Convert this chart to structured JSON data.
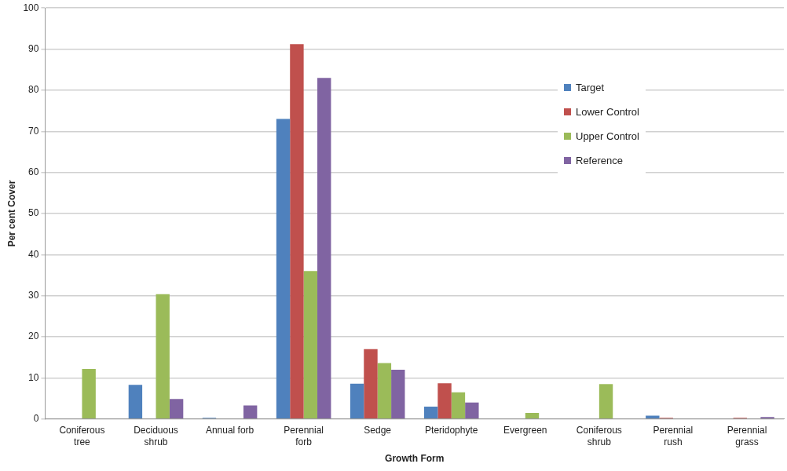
{
  "chart_data": {
    "type": "bar",
    "xlabel": "Growth Form",
    "ylabel": "Per cent Cover",
    "categories": [
      "Coniferous tree",
      "Deciduous shrub",
      "Annual forb",
      "Perennial forb",
      "Sedge",
      "Pteridophyte",
      "Evergreen",
      "Coniferous shrub",
      "Perennial rush",
      "Perennial grass"
    ],
    "series": [
      {
        "name": "Target",
        "color": "#4f81bd",
        "values": [
          0,
          8.3,
          0.3,
          73,
          8.6,
          3,
          0,
          0,
          0.8,
          0
        ]
      },
      {
        "name": "Lower Control",
        "color": "#c0504d",
        "values": [
          0,
          0,
          0,
          91.2,
          17,
          8.7,
          0,
          0,
          0.3,
          0.3
        ]
      },
      {
        "name": "Upper Control",
        "color": "#9bbb59",
        "values": [
          12.2,
          30.4,
          0,
          36,
          13.6,
          6.5,
          1.5,
          8.5,
          0,
          0
        ]
      },
      {
        "name": "Reference",
        "color": "#8064a2",
        "values": [
          0,
          4.9,
          3.3,
          83,
          12,
          4,
          0,
          0,
          0,
          0.5
        ]
      }
    ],
    "ylim": [
      0,
      100
    ],
    "yticks": [
      0,
      10,
      20,
      30,
      40,
      50,
      60,
      70,
      80,
      90,
      100
    ],
    "grid": "y",
    "legend": "top right"
  }
}
